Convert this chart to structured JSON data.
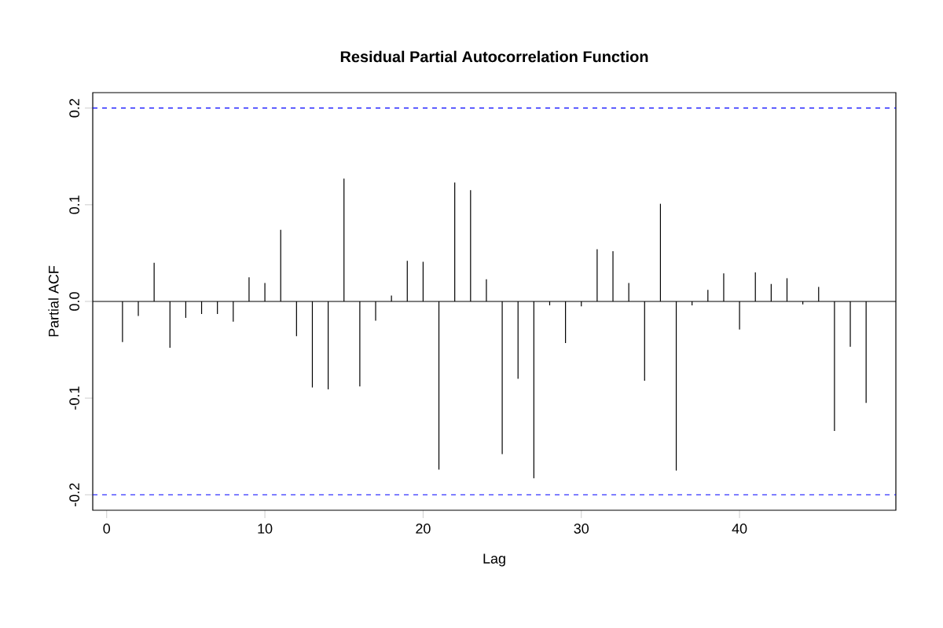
{
  "chart_data": {
    "type": "bar",
    "title": "Residual Partial Autocorrelation Function",
    "xlabel": "Lag",
    "ylabel": "Partial ACF",
    "x": [
      1,
      2,
      3,
      4,
      5,
      6,
      7,
      8,
      9,
      10,
      11,
      12,
      13,
      14,
      15,
      16,
      17,
      18,
      19,
      20,
      21,
      22,
      23,
      24,
      25,
      26,
      27,
      28,
      29,
      30,
      31,
      32,
      33,
      34,
      35,
      36,
      37,
      38,
      39,
      40,
      41,
      42,
      43,
      44,
      45,
      46,
      47,
      48
    ],
    "values": [
      -0.042,
      -0.015,
      0.04,
      -0.048,
      -0.017,
      -0.013,
      -0.013,
      -0.021,
      0.025,
      0.019,
      0.074,
      -0.036,
      -0.089,
      -0.091,
      0.127,
      -0.088,
      -0.02,
      0.006,
      0.042,
      0.041,
      -0.174,
      0.123,
      0.115,
      0.023,
      -0.158,
      -0.08,
      -0.183,
      -0.004,
      -0.043,
      -0.005,
      0.054,
      0.052,
      0.019,
      -0.082,
      0.101,
      -0.175,
      -0.004,
      0.012,
      0.029,
      -0.029,
      0.03,
      0.018,
      0.024,
      -0.003,
      0.015,
      -0.134,
      -0.047,
      -0.105
    ],
    "color": "#000000",
    "xlim": [
      -0.88,
      49.88
    ],
    "ylim": [
      -0.216,
      0.216
    ],
    "xticks": [
      0,
      10,
      20,
      30,
      40
    ],
    "yticks": [
      {
        "value": -0.2,
        "label": "-0.2"
      },
      {
        "value": -0.1,
        "label": "-0.1"
      },
      {
        "value": 0,
        "label": "0.0"
      },
      {
        "value": 0.1,
        "label": "0.1"
      },
      {
        "value": 0.2,
        "label": "0.2"
      }
    ],
    "ref_lines": [
      {
        "axis": "y",
        "value": 0.2,
        "color": "#0000ff",
        "line_style": "dashed"
      },
      {
        "axis": "y",
        "value": -0.2,
        "color": "#0000ff",
        "line_style": "dashed"
      },
      {
        "axis": "y",
        "value": 0,
        "color": "#000000",
        "line_style": "solid"
      }
    ],
    "grid": false
  }
}
